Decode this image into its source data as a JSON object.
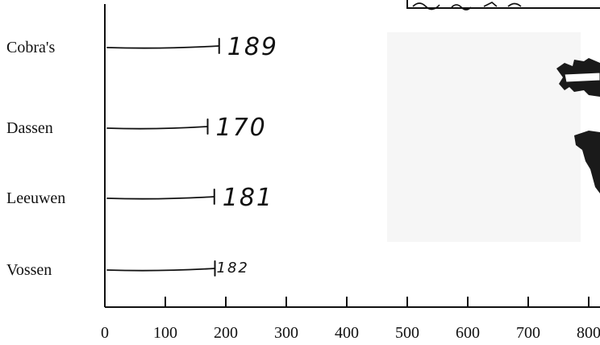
{
  "chart_data": {
    "type": "bar",
    "categories": [
      "Cobra's",
      "Dassen",
      "Leeuwen",
      "Vossen"
    ],
    "values": [
      189,
      170,
      181,
      182
    ],
    "value_labels": [
      "189",
      "170",
      "181",
      "182"
    ],
    "x_ticks": [
      "0",
      "100",
      "200",
      "300",
      "400",
      "500",
      "600",
      "700",
      "800"
    ],
    "xlim": [
      0,
      800
    ],
    "orientation": "horizontal",
    "style": "hand-drawn lines",
    "grid": false
  },
  "colors": {
    "ink": "#111111",
    "inset_fill": "#f4f4f4",
    "inset_dark": "#1a1a1a"
  }
}
